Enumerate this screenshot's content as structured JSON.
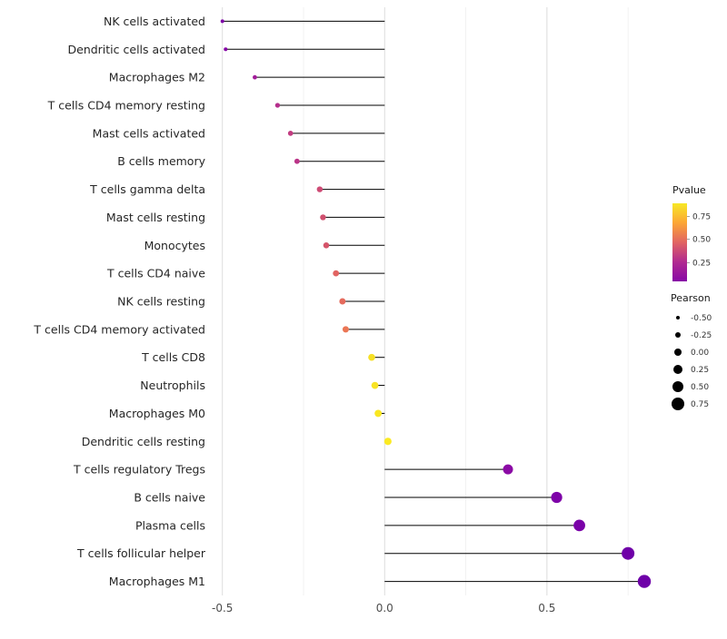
{
  "chart_data": {
    "type": "lollipop",
    "orientation": "horizontal",
    "title": "",
    "xlabel": "",
    "ylabel": "",
    "xlim": [
      -0.53,
      0.87
    ],
    "x_ticks": [
      {
        "value": -0.5,
        "label": "-0.5"
      },
      {
        "value": 0.0,
        "label": "0.0"
      },
      {
        "value": 0.5,
        "label": "0.5"
      }
    ],
    "x_minor_ticks": [
      -0.25,
      0.25,
      0.75
    ],
    "stem_color": "#000000",
    "points": [
      {
        "label": "NK cells activated",
        "pearson": -0.5,
        "color": "#7E03A8"
      },
      {
        "label": "Dendritic cells activated",
        "pearson": -0.49,
        "color": "#8606A6"
      },
      {
        "label": "Macrophages M2",
        "pearson": -0.4,
        "color": "#A21D9A"
      },
      {
        "label": "T cells CD4 memory resting",
        "pearson": -0.33,
        "color": "#B52F8C"
      },
      {
        "label": "Mast cells activated",
        "pearson": -0.29,
        "color": "#C23C81"
      },
      {
        "label": "B cells memory",
        "pearson": -0.27,
        "color": "#BB3488"
      },
      {
        "label": "T cells gamma delta",
        "pearson": -0.2,
        "color": "#CE4B75"
      },
      {
        "label": "Mast cells resting",
        "pearson": -0.19,
        "color": "#D0506F"
      },
      {
        "label": "Monocytes",
        "pearson": -0.18,
        "color": "#D5546A"
      },
      {
        "label": "T cells CD4 naive",
        "pearson": -0.15,
        "color": "#E16462"
      },
      {
        "label": "NK cells resting",
        "pearson": -0.13,
        "color": "#E56B5D"
      },
      {
        "label": "T cells CD4 memory activated",
        "pearson": -0.12,
        "color": "#EB7655"
      },
      {
        "label": "T cells CD8",
        "pearson": -0.04,
        "color": "#F6E026"
      },
      {
        "label": "Neutrophils",
        "pearson": -0.03,
        "color": "#F8E325"
      },
      {
        "label": "Macrophages M0",
        "pearson": -0.02,
        "color": "#F9E721"
      },
      {
        "label": "Dendritic cells resting",
        "pearson": 0.01,
        "color": "#FBEA23"
      },
      {
        "label": "T cells regulatory  Tregs",
        "pearson": 0.38,
        "color": "#8B0AA5"
      },
      {
        "label": "B cells naive",
        "pearson": 0.53,
        "color": "#7E03A8"
      },
      {
        "label": "Plasma cells",
        "pearson": 0.6,
        "color": "#7A02A8"
      },
      {
        "label": "T cells follicular helper",
        "pearson": 0.75,
        "color": "#6F00A8"
      },
      {
        "label": "Macrophages M1",
        "pearson": 0.8,
        "color": "#6E00A8"
      }
    ],
    "legend_pvalue": {
      "title": "Pvalue",
      "gradient_top_to_bottom": [
        "#F7E825",
        "#FCA636",
        "#E16462",
        "#B12A90",
        "#8707A6"
      ],
      "ticks": [
        {
          "label": "0.75",
          "pos": 0.17
        },
        {
          "label": "0.50",
          "pos": 0.46
        },
        {
          "label": "0.25",
          "pos": 0.76
        }
      ]
    },
    "legend_pearson": {
      "title": "Pearson",
      "dot_color": "#000000",
      "items": [
        {
          "label": "-0.50",
          "value": -0.5
        },
        {
          "label": "-0.25",
          "value": -0.25
        },
        {
          "label": "0.00",
          "value": 0.0
        },
        {
          "label": "0.25",
          "value": 0.25
        },
        {
          "label": "0.50",
          "value": 0.5
        },
        {
          "label": "0.75",
          "value": 0.75
        }
      ]
    },
    "style": {
      "grid_major_color": "#DCDCDC",
      "grid_minor_color": "#EFEFEF",
      "axis_text_color": "#4D4D4D",
      "label_text_color": "#262626",
      "legend_title_color": "#1A1A1A",
      "legend_text_color": "#333333"
    }
  }
}
